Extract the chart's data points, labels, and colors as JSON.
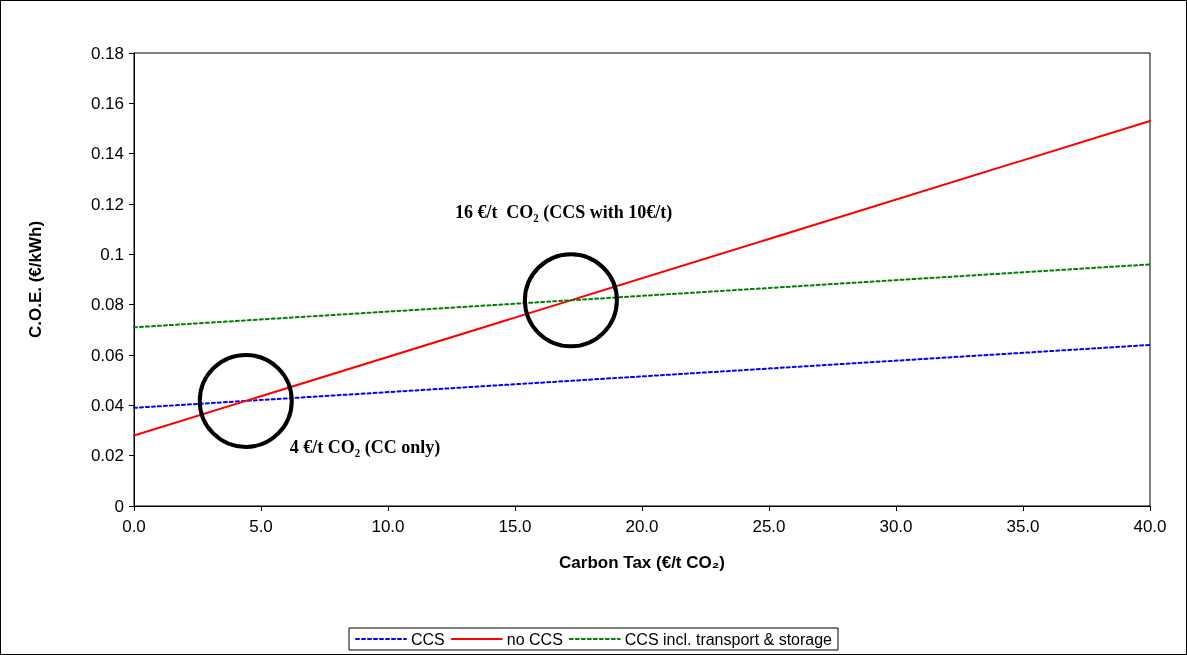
{
  "chart_data": {
    "type": "line",
    "xlabel": "Carbon Tax (€/t CO₂)",
    "ylabel": "C.O.E. (€/kWh)",
    "x": [
      0,
      40
    ],
    "series": [
      {
        "name": "CCS",
        "color": "#0000ff",
        "line_style": "dotted",
        "values": [
          0.039,
          0.064
        ]
      },
      {
        "name": "no CCS",
        "color": "#ff0000",
        "line_style": "solid",
        "values": [
          0.028,
          0.153
        ]
      },
      {
        "name": "CCS incl. transport & storage",
        "color": "#008000",
        "line_style": "dotted",
        "values": [
          0.071,
          0.096
        ]
      }
    ],
    "annotations": [
      "4 €/t CO₂ (CC only)",
      "16 €/t  CO₂ (CCS with 10€/t)"
    ],
    "xlim": [
      0,
      40
    ],
    "xticks": [
      {
        "value": 0,
        "label": "0.0"
      },
      {
        "value": 5,
        "label": "5.0"
      },
      {
        "value": 10,
        "label": "10.0"
      },
      {
        "value": 15,
        "label": "15.0"
      },
      {
        "value": 20,
        "label": "20.0"
      },
      {
        "value": 25,
        "label": "25.0"
      },
      {
        "value": 30,
        "label": "30.0"
      },
      {
        "value": 35,
        "label": "35.0"
      },
      {
        "value": 40,
        "label": "40.0"
      }
    ],
    "ylim": [
      0,
      0.18
    ],
    "yticks": [
      0,
      0.02,
      0.04,
      0.06,
      0.08,
      0.1,
      0.12,
      0.14,
      0.16,
      0.18
    ],
    "grid": false,
    "legend": "bottom",
    "marker": "none"
  }
}
